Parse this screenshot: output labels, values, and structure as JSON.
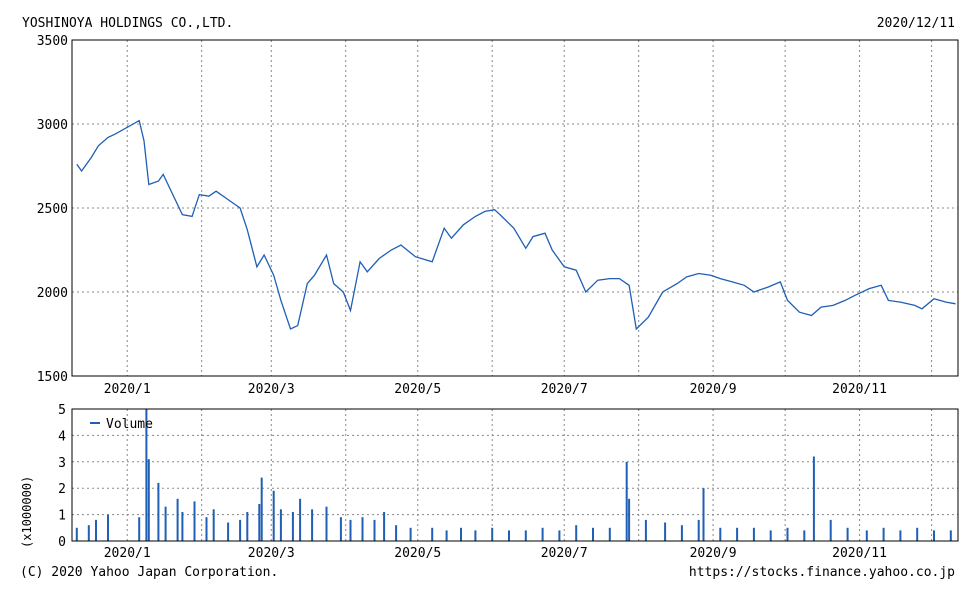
{
  "header": {
    "company": "YOSHINOYA HOLDINGS CO.,LTD.",
    "date": "2020/12/11"
  },
  "footer": {
    "copyright": "(C) 2020 Yahoo Japan Corporation.",
    "url": "https://stocks.finance.yahoo.co.jp"
  },
  "colors": {
    "line": "#1f5fb5",
    "bars": "#1f5fb5",
    "grid": "#888888",
    "frame": "#000000"
  },
  "chart_data": [
    {
      "type": "line",
      "name": "price",
      "xticks": [
        "2020/1",
        "2020/3",
        "2020/5",
        "2020/7",
        "2020/9",
        "2020/11"
      ],
      "ylim": [
        1500,
        3500
      ],
      "yticks": [
        "3500",
        "3000",
        "2500",
        "2000",
        "1500"
      ],
      "grid": true,
      "series": [
        {
          "x": [
            "2019-12-11",
            "2019-12-13",
            "2019-12-17",
            "2019-12-20",
            "2019-12-24",
            "2019-12-27",
            "2020-01-06",
            "2020-01-08",
            "2020-01-10",
            "2020-01-14",
            "2020-01-16",
            "2020-01-20",
            "2020-01-24",
            "2020-01-28",
            "2020-01-31",
            "2020-02-04",
            "2020-02-07",
            "2020-02-12",
            "2020-02-17",
            "2020-02-20",
            "2020-02-24",
            "2020-02-27",
            "2020-03-02",
            "2020-03-05",
            "2020-03-09",
            "2020-03-12",
            "2020-03-16",
            "2020-03-19",
            "2020-03-24",
            "2020-03-27",
            "2020-03-31",
            "2020-04-03",
            "2020-04-07",
            "2020-04-10",
            "2020-04-15",
            "2020-04-20",
            "2020-04-24",
            "2020-04-30",
            "2020-05-07",
            "2020-05-12",
            "2020-05-15",
            "2020-05-20",
            "2020-05-25",
            "2020-05-29",
            "2020-06-02",
            "2020-06-05",
            "2020-06-10",
            "2020-06-15",
            "2020-06-18",
            "2020-06-23",
            "2020-06-26",
            "2020-07-01",
            "2020-07-06",
            "2020-07-10",
            "2020-07-15",
            "2020-07-20",
            "2020-07-24",
            "2020-07-28",
            "2020-07-31",
            "2020-08-05",
            "2020-08-11",
            "2020-08-17",
            "2020-08-21",
            "2020-08-26",
            "2020-08-31",
            "2020-09-04",
            "2020-09-09",
            "2020-09-14",
            "2020-09-18",
            "2020-09-24",
            "2020-09-29",
            "2020-10-02",
            "2020-10-07",
            "2020-10-12",
            "2020-10-16",
            "2020-10-21",
            "2020-10-26",
            "2020-10-30",
            "2020-11-05",
            "2020-11-10",
            "2020-11-13",
            "2020-11-18",
            "2020-11-24",
            "2020-11-27",
            "2020-12-02",
            "2020-12-07",
            "2020-12-11"
          ],
          "y": [
            2760,
            2720,
            2800,
            2870,
            2920,
            2940,
            3020,
            2900,
            2640,
            2660,
            2700,
            2580,
            2460,
            2450,
            2580,
            2570,
            2600,
            2550,
            2500,
            2370,
            2150,
            2220,
            2100,
            1950,
            1780,
            1800,
            2050,
            2100,
            2220,
            2050,
            2000,
            1890,
            2180,
            2120,
            2200,
            2250,
            2280,
            2210,
            2180,
            2380,
            2320,
            2400,
            2450,
            2480,
            2490,
            2450,
            2380,
            2260,
            2330,
            2350,
            2250,
            2150,
            2130,
            2000,
            2070,
            2080,
            2080,
            2040,
            1780,
            1850,
            2000,
            2050,
            2090,
            2110,
            2100,
            2080,
            2060,
            2040,
            2000,
            2030,
            2060,
            1950,
            1880,
            1860,
            1910,
            1920,
            1950,
            1980,
            2020,
            2040,
            1950,
            1940,
            1920,
            1900,
            1960,
            1940,
            1930
          ]
        }
      ]
    },
    {
      "type": "bar",
      "name": "volume",
      "xticks": [
        "2020/1",
        "2020/3",
        "2020/5",
        "2020/7",
        "2020/9",
        "2020/11"
      ],
      "ylim": [
        0,
        5
      ],
      "yticks": [
        "5",
        "4",
        "3",
        "2",
        "1",
        "0"
      ],
      "ylabel": "(x1000000)",
      "legend": "Volume",
      "legend_position": "top-left",
      "grid": true,
      "series": [
        {
          "name": "Volume",
          "x": [
            "2019-12-11",
            "2019-12-16",
            "2019-12-19",
            "2019-12-24",
            "2020-01-06",
            "2020-01-09",
            "2020-01-10",
            "2020-01-14",
            "2020-01-17",
            "2020-01-22",
            "2020-01-24",
            "2020-01-29",
            "2020-02-03",
            "2020-02-06",
            "2020-02-12",
            "2020-02-17",
            "2020-02-20",
            "2020-02-25",
            "2020-02-26",
            "2020-03-02",
            "2020-03-05",
            "2020-03-10",
            "2020-03-13",
            "2020-03-18",
            "2020-03-24",
            "2020-03-30",
            "2020-04-03",
            "2020-04-08",
            "2020-04-13",
            "2020-04-17",
            "2020-04-22",
            "2020-04-28",
            "2020-05-07",
            "2020-05-13",
            "2020-05-19",
            "2020-05-25",
            "2020-06-01",
            "2020-06-08",
            "2020-06-15",
            "2020-06-22",
            "2020-06-29",
            "2020-07-06",
            "2020-07-13",
            "2020-07-20",
            "2020-07-27",
            "2020-07-28",
            "2020-08-04",
            "2020-08-12",
            "2020-08-19",
            "2020-08-26",
            "2020-08-28",
            "2020-09-04",
            "2020-09-11",
            "2020-09-18",
            "2020-09-25",
            "2020-10-02",
            "2020-10-09",
            "2020-10-13",
            "2020-10-20",
            "2020-10-27",
            "2020-11-04",
            "2020-11-11",
            "2020-11-18",
            "2020-11-25",
            "2020-12-02",
            "2020-12-09"
          ],
          "y": [
            0.5,
            0.6,
            0.8,
            1.0,
            0.9,
            5.0,
            3.1,
            2.2,
            1.3,
            1.6,
            1.1,
            1.5,
            0.9,
            1.2,
            0.7,
            0.8,
            1.1,
            1.4,
            2.4,
            1.9,
            1.2,
            1.1,
            1.6,
            1.2,
            1.3,
            0.9,
            0.8,
            0.9,
            0.8,
            1.1,
            0.6,
            0.5,
            0.5,
            0.4,
            0.5,
            0.4,
            0.5,
            0.4,
            0.4,
            0.5,
            0.4,
            0.6,
            0.5,
            0.5,
            3.0,
            1.6,
            0.8,
            0.7,
            0.6,
            0.8,
            2.0,
            0.5,
            0.5,
            0.5,
            0.4,
            0.5,
            0.4,
            3.2,
            0.8,
            0.5,
            0.4,
            0.5,
            0.4,
            0.5,
            0.4,
            0.4
          ]
        }
      ]
    }
  ]
}
